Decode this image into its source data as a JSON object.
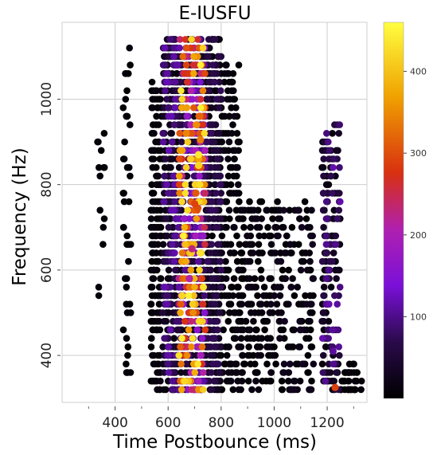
{
  "chart_data": {
    "type": "scatter",
    "title": "E-IUSFU",
    "xlabel": "Time Postbounce (ms)",
    "ylabel": "Frequency (Hz)",
    "xlim": [
      200,
      1350
    ],
    "ylim": [
      290,
      1180
    ],
    "xticks": [
      400,
      600,
      800,
      1000,
      1200
    ],
    "yticks": [
      400,
      600,
      800,
      1000
    ],
    "grid": true,
    "colormap": "gnuplot",
    "colorbar": {
      "range": [
        0,
        460
      ],
      "ticks": [
        100,
        200,
        300,
        400
      ]
    },
    "marker_color_low": "#0d0008",
    "marker_color_high": "#ffff40",
    "clusters": [
      {
        "x_range": [
          640,
          740
        ],
        "y_range": [
          310,
          1150
        ],
        "density": "very high",
        "intensity": [
          20,
          450
        ]
      },
      {
        "x_range": [
          580,
          640
        ],
        "y_range": [
          310,
          1150
        ],
        "density": "high",
        "intensity": [
          10,
          120
        ]
      },
      {
        "x_range": [
          740,
          800
        ],
        "y_range": [
          310,
          1150
        ],
        "density": "high",
        "intensity": [
          5,
          80
        ]
      },
      {
        "x_range": [
          800,
          870
        ],
        "y_range": [
          310,
          1100
        ],
        "density": "medium",
        "intensity": [
          5,
          20
        ]
      },
      {
        "x_range": [
          535,
          575
        ],
        "y_range": [
          310,
          1050
        ],
        "density": "medium",
        "intensity": [
          5,
          15
        ]
      },
      {
        "x_range": [
          870,
          990
        ],
        "y_range": [
          310,
          760
        ],
        "density": "medium",
        "intensity": [
          5,
          20
        ]
      },
      {
        "x_range": [
          990,
          1150
        ],
        "y_range": [
          310,
          760
        ],
        "density": "medium",
        "intensity": [
          5,
          30
        ]
      },
      {
        "x_range": [
          1180,
          1250
        ],
        "y_range": [
          310,
          950
        ],
        "density": "medium",
        "intensity": [
          10,
          120
        ]
      },
      {
        "x_range": [
          1250,
          1330
        ],
        "y_range": [
          310,
          380
        ],
        "density": "low",
        "intensity": [
          5,
          10
        ]
      },
      {
        "x_range": [
          430,
          460
        ],
        "y_range": [
          330,
          1140
        ],
        "density": "low",
        "intensity": [
          5,
          10
        ]
      },
      {
        "x_range": [
          330,
          360
        ],
        "y_range": [
          510,
          940
        ],
        "density": "sparse",
        "intensity": [
          5,
          10
        ]
      }
    ],
    "hotspots": [
      {
        "x": 715,
        "y": 870,
        "value": 440
      },
      {
        "x": 715,
        "y": 845,
        "value": 420
      },
      {
        "x": 722,
        "y": 905,
        "value": 340
      },
      {
        "x": 720,
        "y": 960,
        "value": 320
      },
      {
        "x": 705,
        "y": 780,
        "value": 310
      },
      {
        "x": 712,
        "y": 745,
        "value": 300
      },
      {
        "x": 700,
        "y": 755,
        "value": 290
      },
      {
        "x": 690,
        "y": 650,
        "value": 230
      },
      {
        "x": 680,
        "y": 580,
        "value": 210
      },
      {
        "x": 1230,
        "y": 325,
        "value": 290
      },
      {
        "x": 1222,
        "y": 410,
        "value": 110
      }
    ]
  }
}
